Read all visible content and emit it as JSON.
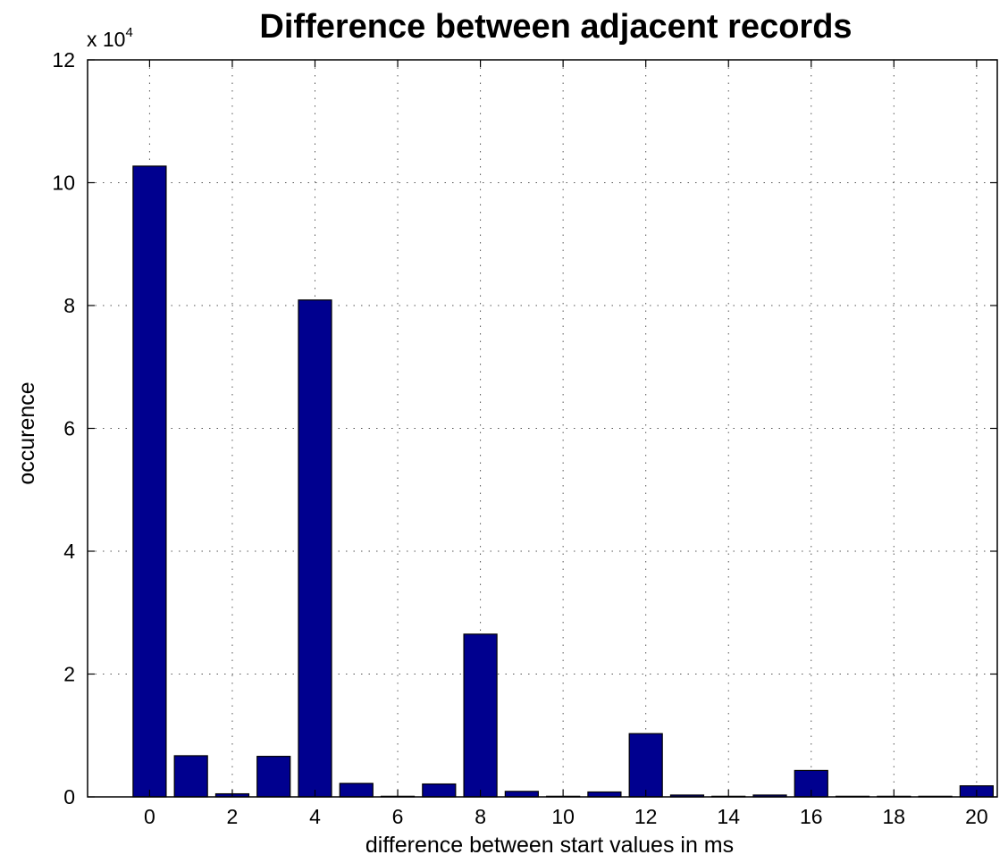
{
  "chart_data": {
    "type": "bar",
    "title": "Difference between adjacent records",
    "xlabel": "difference between start values in ms",
    "ylabel": "occurence",
    "y_multiplier": {
      "prefix": "x 10",
      "exponent": "4"
    },
    "x": [
      0,
      1,
      2,
      3,
      4,
      5,
      6,
      7,
      8,
      9,
      10,
      11,
      12,
      13,
      14,
      15,
      16,
      17,
      18,
      19,
      20
    ],
    "values": [
      102700,
      6700,
      500,
      6600,
      80900,
      2200,
      100,
      2100,
      26500,
      900,
      100,
      800,
      10300,
      300,
      100,
      300,
      4300,
      100,
      100,
      100,
      1800
    ],
    "xlim": [
      -1.5,
      20.5
    ],
    "ylim": [
      0,
      120000
    ],
    "xticks": [
      0,
      2,
      4,
      6,
      8,
      10,
      12,
      14,
      16,
      18,
      20
    ],
    "xtick_labels": [
      "0",
      "2",
      "4",
      "6",
      "8",
      "10",
      "12",
      "14",
      "16",
      "18",
      "20"
    ],
    "yticks": [
      0,
      20000,
      40000,
      60000,
      80000,
      100000,
      120000
    ],
    "ytick_labels": [
      "0",
      "2",
      "4",
      "6",
      "8",
      "10",
      "12"
    ],
    "grid": true,
    "colors": {
      "bar_fill": "#00008f",
      "bar_edge": "#000000",
      "grid": "#555555"
    }
  }
}
